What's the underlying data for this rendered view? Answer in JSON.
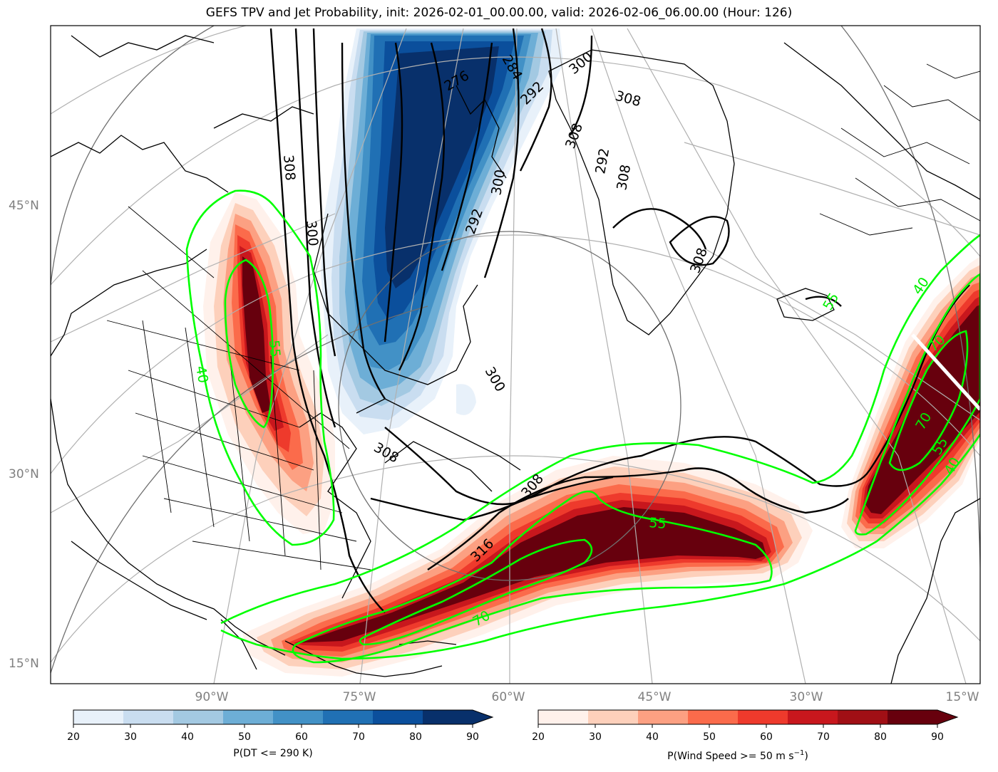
{
  "title": "GEFS TPV and Jet Probability, init: 2026-02-01_00.00.00, valid: 2026-02-06_06.00.00 (Hour: 126)",
  "lat_labels": [
    "45°N",
    "30°N",
    "15°N"
  ],
  "lon_labels": [
    "90°W",
    "75°W",
    "60°W",
    "45°W",
    "30°W",
    "15°W"
  ],
  "dt_contour_labels": [
    "284",
    "276",
    "292",
    "308",
    "300",
    "292",
    "308",
    "300",
    "308",
    "308",
    "308",
    "300",
    "308",
    "300",
    "292",
    "308",
    "316"
  ],
  "jet_contour_labels": [
    "55",
    "40",
    "70",
    "55",
    "40",
    "55",
    "70",
    "40",
    "70",
    "55"
  ],
  "colorbars": {
    "dt": {
      "label": "P(DT <= 290 K)",
      "ticks": [
        "20",
        "30",
        "40",
        "50",
        "60",
        "70",
        "80",
        "90"
      ],
      "colors": [
        "#e8f1fa",
        "#c9ddf0",
        "#a3c9e2",
        "#6daed6",
        "#4291c6",
        "#2070b4",
        "#0b4f9c",
        "#08306b"
      ]
    },
    "wind": {
      "label_main": "P(Wind Speed >= 50 m s",
      "label_sup": "−1",
      "label_end": ")",
      "ticks": [
        "20",
        "30",
        "40",
        "50",
        "60",
        "70",
        "80",
        "90"
      ],
      "colors": [
        "#fff1eb",
        "#fdd0bb",
        "#fca082",
        "#fb6b4b",
        "#ee3a2c",
        "#c8171d",
        "#a00f15",
        "#67000d"
      ]
    }
  },
  "legend": {
    "dt_contour_color": "#000000",
    "jet_contour_color": "#00ff00"
  }
}
